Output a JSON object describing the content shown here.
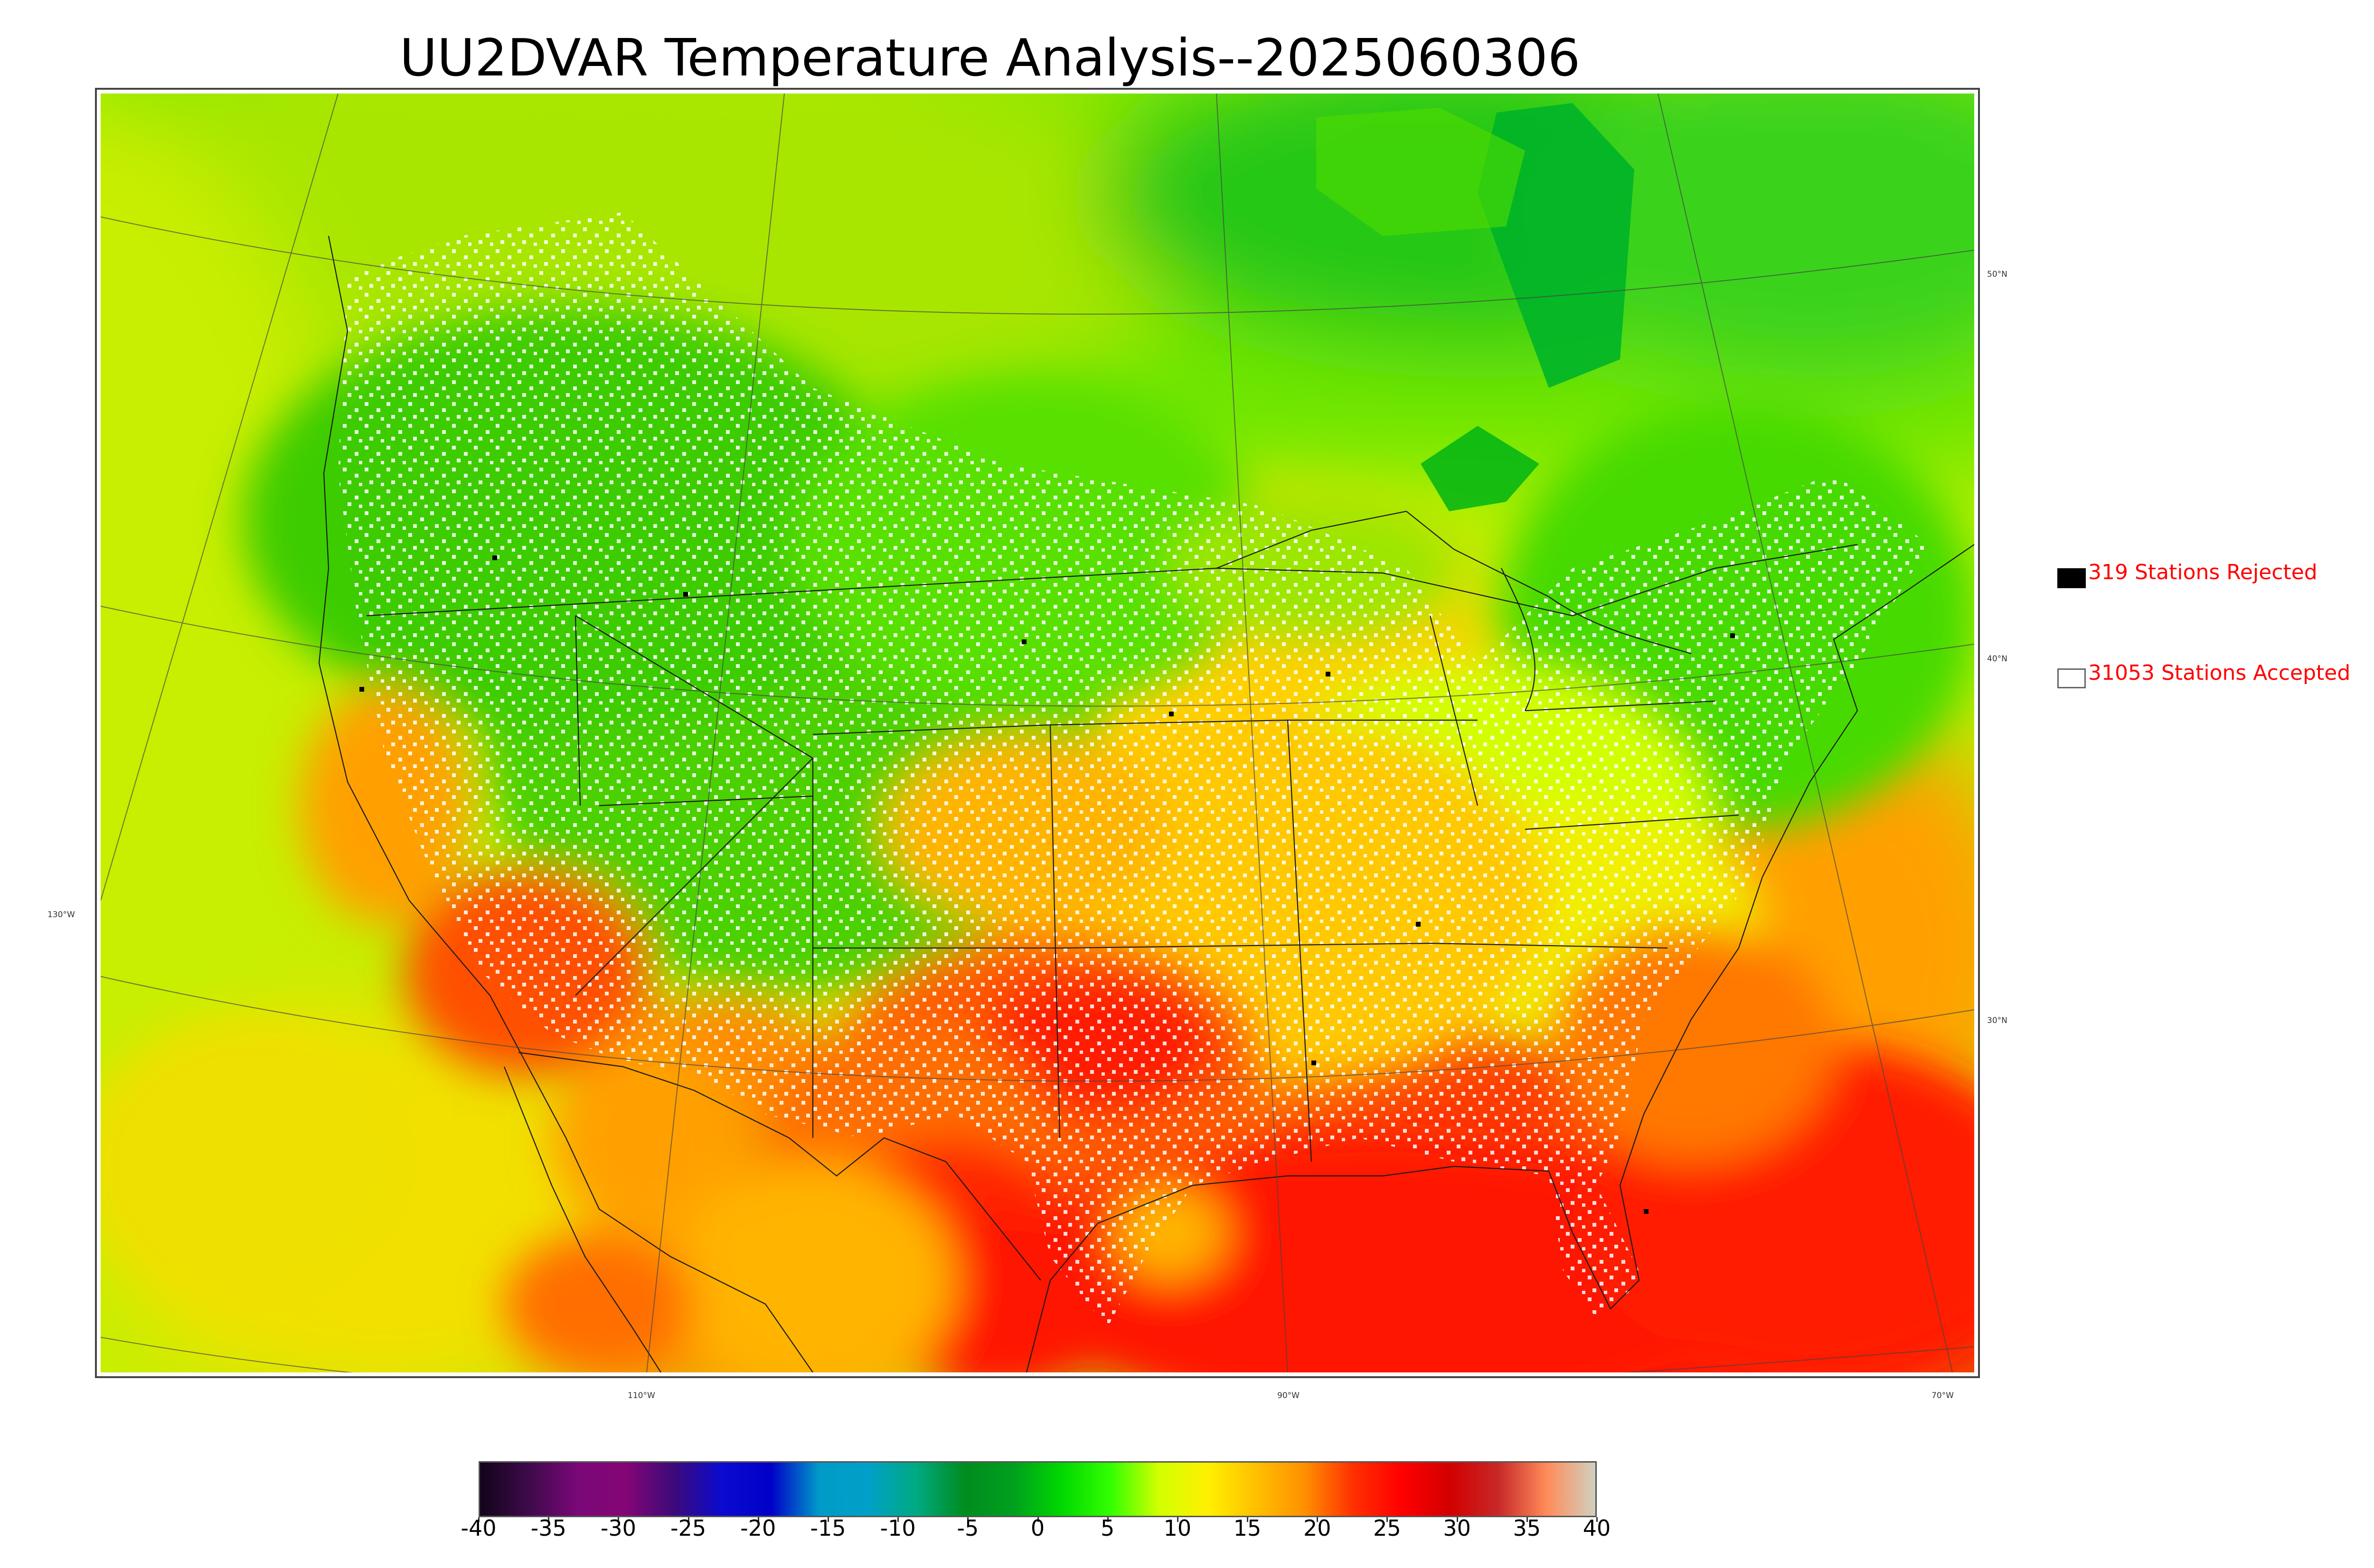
{
  "title": "UU2DVAR Temperature Analysis--2025060306",
  "map": {
    "latitude_labels": [
      "50°N",
      "40°N",
      "30°N"
    ],
    "longitude_labels": [
      "130°W",
      "110°W",
      "90°W",
      "70°W"
    ]
  },
  "legend": {
    "rejected": {
      "label": "319 Stations Rejected",
      "swatch_color": "#000000",
      "text_color": "#ff0000"
    },
    "accepted": {
      "label": "31053 Stations Accepted",
      "swatch_color": "#ffffff",
      "text_color": "#ff0000"
    }
  },
  "colorbar": {
    "min": -40,
    "max": 40,
    "tick_labels": [
      "-40",
      "-35",
      "-30",
      "-25",
      "-20",
      "-15",
      "-10",
      "-5",
      "0",
      "5",
      "10",
      "15",
      "20",
      "25",
      "30",
      "35",
      "40"
    ],
    "colors": [
      "#12041a",
      "#3d0a4a",
      "#7a0878",
      "#850575",
      "#3c0a7a",
      "#0a0ad0",
      "#0000c8",
      "#009bc8",
      "#00a0c8",
      "#00aa82",
      "#008c1e",
      "#00a01e",
      "#00d800",
      "#32ff00",
      "#d2ff00",
      "#fff000",
      "#ffc000",
      "#ff9000",
      "#ff3000",
      "#ff0000",
      "#d20000",
      "#c82828",
      "#ff8c5a",
      "#d0d0c0"
    ]
  }
}
